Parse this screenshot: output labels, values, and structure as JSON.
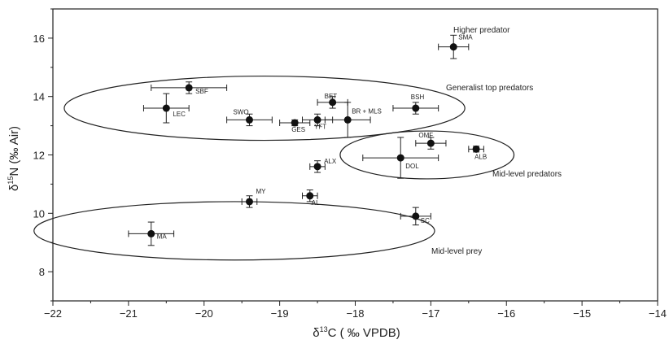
{
  "chart_data": {
    "type": "scatter",
    "xlabel_pre": "δ",
    "xlabel_sup": "13",
    "xlabel_post": "C ( ‰ VPDB)",
    "ylabel_pre": "δ",
    "ylabel_sup": "15",
    "ylabel_post": "N (‰ Air)",
    "xlim": [
      -22,
      -14
    ],
    "ylim": [
      7,
      17
    ],
    "xticks": [
      -22,
      -21,
      -20,
      -19,
      -18,
      -17,
      -16,
      -15,
      -14
    ],
    "yticks": [
      8,
      10,
      12,
      14,
      16
    ],
    "grid": false,
    "points": [
      {
        "label": "SMA",
        "x": -16.7,
        "y": 15.7,
        "xerr": 0.2,
        "yerr": 0.4
      },
      {
        "label": "SBF",
        "x": -20.2,
        "y": 14.3,
        "xerr": 0.5,
        "yerr": 0.2
      },
      {
        "label": "LEC",
        "x": -20.5,
        "y": 13.6,
        "xerr": 0.3,
        "yerr": 0.5
      },
      {
        "label": "BET",
        "x": -18.3,
        "y": 13.8,
        "xerr": 0.2,
        "yerr": 0.2
      },
      {
        "label": "BSH",
        "x": -17.2,
        "y": 13.6,
        "xerr": 0.3,
        "yerr": 0.2
      },
      {
        "label": "SWO",
        "x": -19.4,
        "y": 13.2,
        "xerr": 0.3,
        "yerr": 0.2
      },
      {
        "label": "GES",
        "x": -18.8,
        "y": 13.1,
        "xerr": 0.2,
        "yerr": 0.1
      },
      {
        "label": "YFT",
        "x": -18.5,
        "y": 13.2,
        "xerr": 0.2,
        "yerr": 0.2
      },
      {
        "label": "BR + MLS",
        "x": -18.1,
        "y": 13.2,
        "xerr": 0.3,
        "yerr": 0.6
      },
      {
        "label": "OMF",
        "x": -17.0,
        "y": 12.4,
        "xerr": 0.2,
        "yerr": 0.2
      },
      {
        "label": "ALB",
        "x": -16.4,
        "y": 12.2,
        "xerr": 0.1,
        "yerr": 0.1
      },
      {
        "label": "DOL",
        "x": -17.4,
        "y": 11.9,
        "xerr": 0.5,
        "yerr": 0.7
      },
      {
        "label": "ALX",
        "x": -18.5,
        "y": 11.6,
        "xerr": 0.1,
        "yerr": 0.2
      },
      {
        "label": "MY",
        "x": -19.4,
        "y": 10.4,
        "xerr": 0.1,
        "yerr": 0.2
      },
      {
        "label": "AL",
        "x": -18.6,
        "y": 10.6,
        "xerr": 0.1,
        "yerr": 0.2
      },
      {
        "label": "SC",
        "x": -17.2,
        "y": 9.9,
        "xerr": 0.2,
        "yerr": 0.3
      },
      {
        "label": "MA",
        "x": -20.7,
        "y": 9.3,
        "xerr": 0.3,
        "yerr": 0.4
      }
    ],
    "groups": [
      {
        "label": "Higher predator"
      },
      {
        "label": "Generalist top predators",
        "cx": -19.2,
        "cy": 13.6,
        "rx": 2.65,
        "ry": 1.1
      },
      {
        "label": "Mid-level predators",
        "cx": -17.05,
        "cy": 12.0,
        "rx": 1.15,
        "ry": 0.82
      },
      {
        "label": "Mid-level prey",
        "cx": -19.6,
        "cy": 9.4,
        "rx": 2.65,
        "ry": 1.0
      }
    ]
  }
}
